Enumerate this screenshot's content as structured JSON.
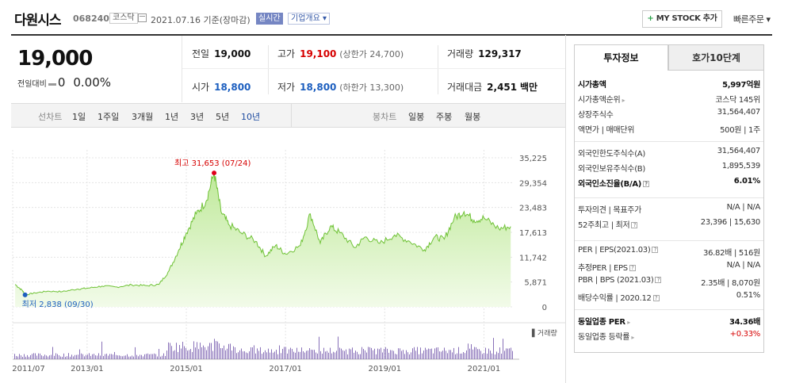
{
  "header": {
    "name": "다원시스",
    "code": "068240",
    "market": "코스닥",
    "date": "2021.07.16 기준(장마감)",
    "realtime": "실시간",
    "corp_info": "기업개요 ▾",
    "mystock_plus": "+",
    "mystock": "MY STOCK 추가",
    "quick_order": "빠른주문 ▾"
  },
  "price": {
    "current": "19,000",
    "change_label": "전일대비",
    "change_value": "0",
    "change_pct": "0.00%"
  },
  "quotes": {
    "prev_label": "전일",
    "prev_value": "19,000",
    "high_label": "고가",
    "high_value": "19,100",
    "upper_limit": "(상한가 24,700)",
    "volume_label": "거래량",
    "volume_value": "129,317",
    "open_label": "시가",
    "open_value": "18,800",
    "low_label": "저가",
    "low_value": "18,800",
    "lower_limit": "(하한가 13,300)",
    "amount_label": "거래대금",
    "amount_value": "2,451",
    "amount_unit": "백만"
  },
  "period_bar": {
    "line_label": "선차트",
    "periods": [
      "1일",
      "1주일",
      "3개월",
      "1년",
      "3년",
      "5년",
      "10년"
    ],
    "active_period": "10년",
    "candle_label": "봉차트",
    "candles": [
      "일봉",
      "주봉",
      "월봉"
    ]
  },
  "chart_data": {
    "type": "area",
    "y_ticks": [
      "35,225",
      "29,354",
      "23,483",
      "17,613",
      "11,742",
      "5,871",
      "0"
    ],
    "x_ticks": [
      "2011/07",
      "2013/01",
      "2015/01",
      "2017/01",
      "2019/01",
      "2021/01"
    ],
    "ylim": [
      0,
      35225
    ],
    "max_label": "최고 31,653 (07/24)",
    "min_label": "최저 2,838 (09/30)",
    "volume_label": "거래량",
    "series": [
      {
        "values": [
          {
            "t": 2011.55,
            "v": 5300
          },
          {
            "t": 2011.7,
            "v": 3800
          },
          {
            "t": 2011.75,
            "v": 2838
          },
          {
            "t": 2011.95,
            "v": 3300
          },
          {
            "t": 2012.2,
            "v": 3700
          },
          {
            "t": 2012.5,
            "v": 3600
          },
          {
            "t": 2012.8,
            "v": 4200
          },
          {
            "t": 2013.0,
            "v": 4400
          },
          {
            "t": 2013.3,
            "v": 4900
          },
          {
            "t": 2013.6,
            "v": 4700
          },
          {
            "t": 2013.9,
            "v": 5200
          },
          {
            "t": 2014.2,
            "v": 5000
          },
          {
            "t": 2014.45,
            "v": 5300
          },
          {
            "t": 2014.65,
            "v": 8500
          },
          {
            "t": 2014.85,
            "v": 13500
          },
          {
            "t": 2015.0,
            "v": 17500
          },
          {
            "t": 2015.2,
            "v": 22000
          },
          {
            "t": 2015.4,
            "v": 25000
          },
          {
            "t": 2015.56,
            "v": 31653
          },
          {
            "t": 2015.7,
            "v": 22500
          },
          {
            "t": 2015.85,
            "v": 19500
          },
          {
            "t": 2016.1,
            "v": 17500
          },
          {
            "t": 2016.4,
            "v": 15500
          },
          {
            "t": 2016.6,
            "v": 12000
          },
          {
            "t": 2016.8,
            "v": 14500
          },
          {
            "t": 2017.0,
            "v": 12500
          },
          {
            "t": 2017.3,
            "v": 14500
          },
          {
            "t": 2017.5,
            "v": 22000
          },
          {
            "t": 2017.7,
            "v": 15000
          },
          {
            "t": 2017.9,
            "v": 19000
          },
          {
            "t": 2018.1,
            "v": 17500
          },
          {
            "t": 2018.4,
            "v": 14000
          },
          {
            "t": 2018.6,
            "v": 16500
          },
          {
            "t": 2018.9,
            "v": 15000
          },
          {
            "t": 2019.2,
            "v": 17000
          },
          {
            "t": 2019.5,
            "v": 15500
          },
          {
            "t": 2019.8,
            "v": 13500
          },
          {
            "t": 2020.0,
            "v": 16500
          },
          {
            "t": 2020.2,
            "v": 16000
          },
          {
            "t": 2020.4,
            "v": 21000
          },
          {
            "t": 2020.6,
            "v": 22500
          },
          {
            "t": 2020.8,
            "v": 20500
          },
          {
            "t": 2021.0,
            "v": 21000
          },
          {
            "t": 2021.3,
            "v": 18500
          },
          {
            "t": 2021.54,
            "v": 19000
          }
        ]
      }
    ]
  },
  "right_panel": {
    "tab_active": "투자정보",
    "tab_other": "호가10단계",
    "rows1": [
      {
        "k": "시가총액",
        "v": "5,997억원",
        "bold": true
      },
      {
        "k": "시가총액순위",
        "v": "코스닥 145위",
        "arrow": true
      },
      {
        "k": "상장주식수",
        "v": "31,564,407"
      },
      {
        "k": "액면가 | 매매단위",
        "v": "500원 | 1주"
      }
    ],
    "rows2": [
      {
        "k": "외국인한도주식수(A)",
        "v": "31,564,407"
      },
      {
        "k": "외국인보유주식수(B)",
        "v": "1,895,539"
      },
      {
        "k": "외국인소진율(B/A)",
        "v": "6.01%",
        "bold": true,
        "q": true
      }
    ],
    "rows3": [
      {
        "k": "투자의견 | 목표주가",
        "v": "N/A | N/A"
      },
      {
        "k": "52주최고 | 최저",
        "v": "23,396 | 15,630",
        "q": true
      }
    ],
    "rows4": [
      {
        "k": "PER | EPS(2021.03)",
        "v": "36.82배 | 516원",
        "q": true
      },
      {
        "k": "추정PER | EPS",
        "v": "N/A | N/A",
        "q": true
      },
      {
        "k": "PBR | BPS (2021.03)",
        "v": "2.35배 | 8,070원",
        "q": true
      },
      {
        "k": "배당수익률 | 2020.12",
        "v": "0.51%",
        "q": true
      }
    ],
    "rows5": [
      {
        "k": "동일업종 PER",
        "v": "34.36배",
        "bold": true,
        "arrow": true
      },
      {
        "k": "동일업종 등락률",
        "v": "+0.33%",
        "red": true,
        "arrow": true
      }
    ]
  }
}
